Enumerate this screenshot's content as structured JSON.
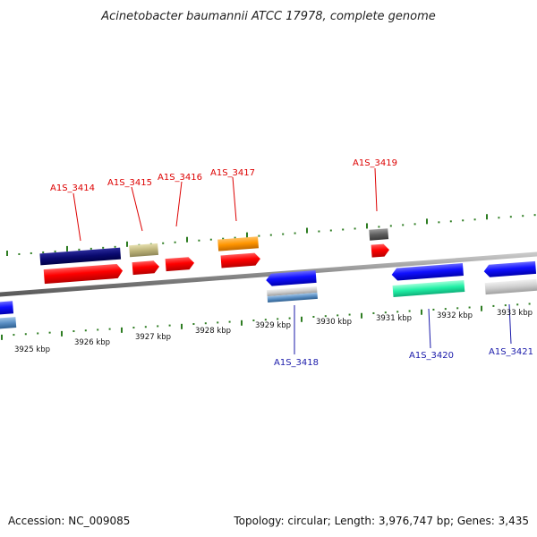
{
  "title": "Acinetobacter baumannii ATCC 17978, complete genome",
  "footer": {
    "accession": "Accession: NC_009085",
    "summary": "Topology: circular; Length: 3,976,747 bp; Genes: 3,435"
  },
  "kbp_labels": [
    "3925 kbp",
    "3926 kbp",
    "3927 kbp",
    "3928 kbp",
    "3929 kbp",
    "3930 kbp",
    "3931 kbp",
    "3932 kbp",
    "3933 kbp"
  ],
  "gene_labels_top": [
    "A1S_3414",
    "A1S_3415",
    "A1S_3416",
    "A1S_3417",
    "A1S_3419"
  ],
  "gene_labels_bottom": [
    "A1S_3418",
    "A1S_3420",
    "A1S_3421"
  ],
  "colors": {
    "backbone": "#8a8a8a",
    "tick": "#2e7d22",
    "label_top": "#dd0000",
    "label_bottom": "#1a1aaa"
  }
}
